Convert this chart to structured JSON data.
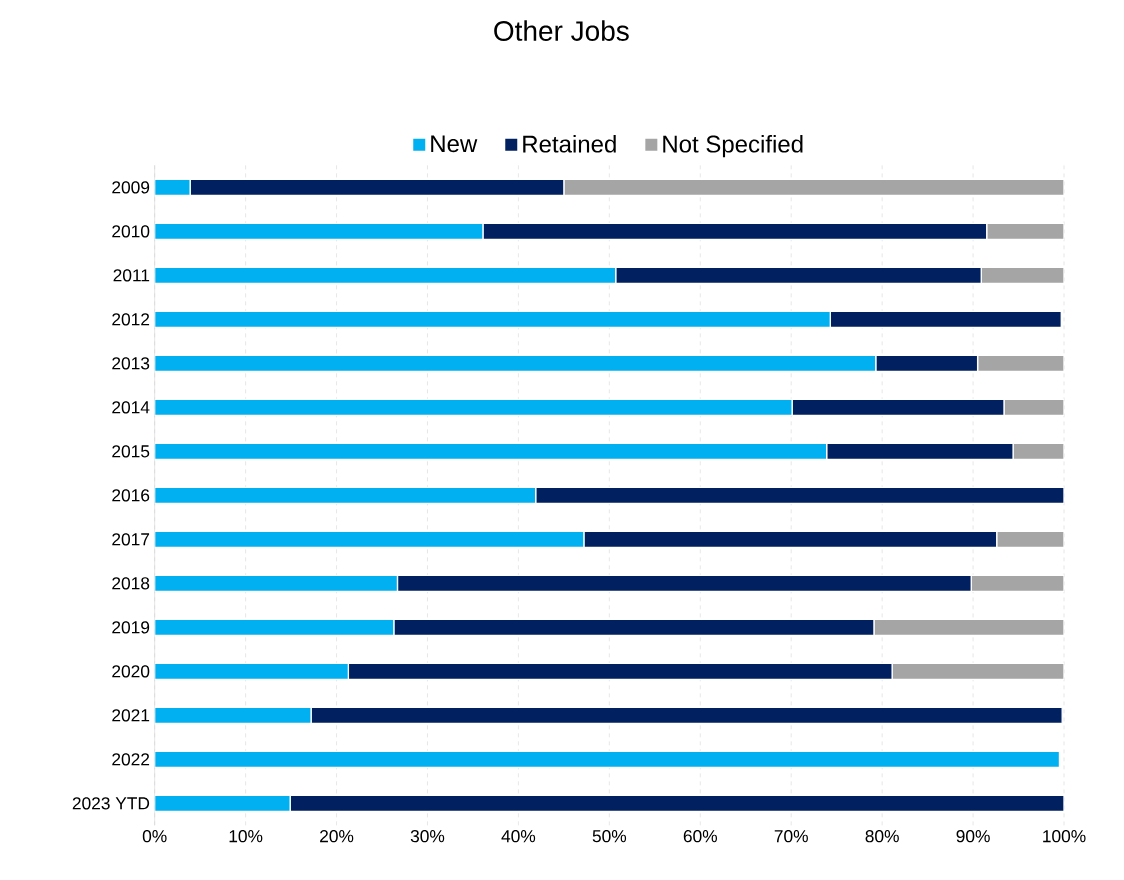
{
  "chart_data": {
    "type": "bar",
    "orientation": "horizontal",
    "stacked": true,
    "title": "Other Jobs",
    "categories": [
      "2009",
      "2010",
      "2011",
      "2012",
      "2013",
      "2014",
      "2015",
      "2016",
      "2017",
      "2018",
      "2019",
      "2020",
      "2021",
      "2022",
      "2023 YTD"
    ],
    "series": [
      {
        "name": "New",
        "color": "#00b0f0",
        "values": [
          3.9,
          36.1,
          50.7,
          74.3,
          79.3,
          70.1,
          73.9,
          41.9,
          47.2,
          26.7,
          26.3,
          21.3,
          17.2,
          99.5,
          14.9
        ]
      },
      {
        "name": "Retained",
        "color": "#002060",
        "values": [
          41.1,
          55.4,
          40.2,
          25.4,
          11.2,
          23.3,
          20.5,
          58.1,
          45.4,
          63.1,
          52.8,
          59.8,
          82.6,
          null,
          85.1
        ]
      },
      {
        "name": "Not Specified",
        "color": "#a5a5a5",
        "values": [
          55.0,
          8.5,
          9.1,
          null,
          9.5,
          6.6,
          5.6,
          null,
          7.4,
          10.2,
          20.9,
          18.9,
          null,
          null,
          null
        ]
      }
    ],
    "xlim": [
      0,
      100
    ],
    "xticks": [
      {
        "value": 0,
        "label": "0%"
      },
      {
        "value": 10,
        "label": "10%"
      },
      {
        "value": 20,
        "label": "20%"
      },
      {
        "value": 30,
        "label": "30%"
      },
      {
        "value": 40,
        "label": "40%"
      },
      {
        "value": 50,
        "label": "50%"
      },
      {
        "value": 60,
        "label": "60%"
      },
      {
        "value": 70,
        "label": "70%"
      },
      {
        "value": 80,
        "label": "80%"
      },
      {
        "value": 90,
        "label": "90%"
      },
      {
        "value": 100,
        "label": "100%"
      }
    ],
    "grid": "x",
    "legend": "top"
  }
}
